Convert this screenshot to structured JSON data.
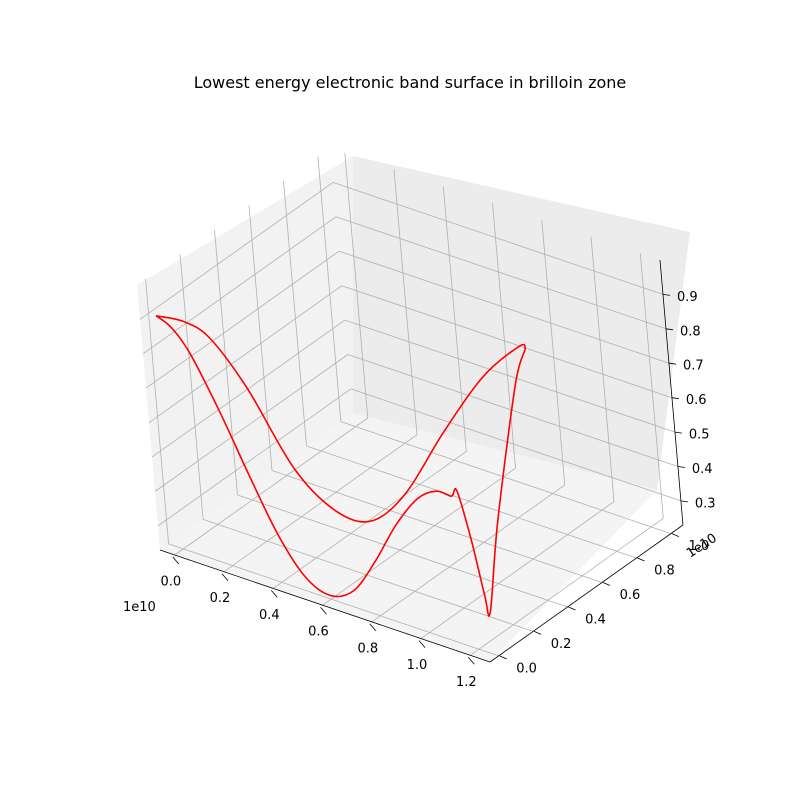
{
  "chart_data": {
    "type": "line",
    "projection": "3d",
    "title": "Lowest energy electronic band surface in brilloin zone",
    "xlabel": "",
    "ylabel": "",
    "zlabel": "",
    "x_offset_label": "1e10",
    "y_offset_label": "1e10",
    "x_ticks": [
      "0.0",
      "0.2",
      "0.4",
      "0.6",
      "0.8",
      "1.0",
      "1.2"
    ],
    "y_ticks": [
      "0.0",
      "0.2",
      "0.4",
      "0.6",
      "0.8",
      "1.0"
    ],
    "z_ticks": [
      "0.3",
      "0.4",
      "0.5",
      "0.6",
      "0.7",
      "0.8",
      "0.9"
    ],
    "xlim": [
      -0.06,
      1.28
    ],
    "ylim": [
      -0.05,
      1.07
    ],
    "zlim": [
      0.23,
      1.0
    ],
    "grid": true,
    "series": [
      {
        "color": "#ff0000",
        "points": [
          {
            "x": -0.03,
            "y": 0.0,
            "z": 0.9
          },
          {
            "x": 0.03,
            "y": 0.0,
            "z": 0.88
          },
          {
            "x": 0.1,
            "y": 0.0,
            "z": 0.82
          },
          {
            "x": 0.2,
            "y": 0.0,
            "z": 0.68
          },
          {
            "x": 0.3,
            "y": 0.0,
            "z": 0.52
          },
          {
            "x": 0.4,
            "y": 0.0,
            "z": 0.37
          },
          {
            "x": 0.5,
            "y": 0.0,
            "z": 0.27
          },
          {
            "x": 0.6,
            "y": 0.0,
            "z": 0.24
          },
          {
            "x": 0.7,
            "y": 0.0,
            "z": 0.28
          },
          {
            "x": 0.8,
            "y": 0.0,
            "z": 0.39
          },
          {
            "x": 0.9,
            "y": 0.0,
            "z": 0.52
          },
          {
            "x": 1.0,
            "y": 0.0,
            "z": 0.62
          },
          {
            "x": 1.08,
            "y": 0.0,
            "z": 0.66
          },
          {
            "x": 1.14,
            "y": 0.0,
            "z": 0.66
          },
          {
            "x": 1.15,
            "y": 0.02,
            "z": 0.67
          },
          {
            "x": 1.17,
            "y": 0.05,
            "z": 0.52
          },
          {
            "x": 1.19,
            "y": 0.07,
            "z": 0.36
          },
          {
            "x": 1.2,
            "y": 0.08,
            "z": 0.31
          },
          {
            "x": 1.21,
            "y": 0.15,
            "z": 0.55
          },
          {
            "x": 1.22,
            "y": 0.3,
            "z": 0.9
          },
          {
            "x": 1.22,
            "y": 0.37,
            "z": 0.98
          },
          {
            "x": 1.17,
            "y": 0.37,
            "z": 0.96
          },
          {
            "x": 1.05,
            "y": 0.34,
            "z": 0.86
          },
          {
            "x": 0.9,
            "y": 0.3,
            "z": 0.68
          },
          {
            "x": 0.75,
            "y": 0.26,
            "z": 0.48
          },
          {
            "x": 0.62,
            "y": 0.23,
            "z": 0.38
          },
          {
            "x": 0.5,
            "y": 0.2,
            "z": 0.39
          },
          {
            "x": 0.38,
            "y": 0.15,
            "z": 0.5
          },
          {
            "x": 0.25,
            "y": 0.1,
            "z": 0.72
          },
          {
            "x": 0.15,
            "y": 0.05,
            "z": 0.86
          },
          {
            "x": 0.07,
            "y": 0.02,
            "z": 0.9
          },
          {
            "x": -0.03,
            "y": 0.0,
            "z": 0.9
          }
        ]
      }
    ]
  }
}
